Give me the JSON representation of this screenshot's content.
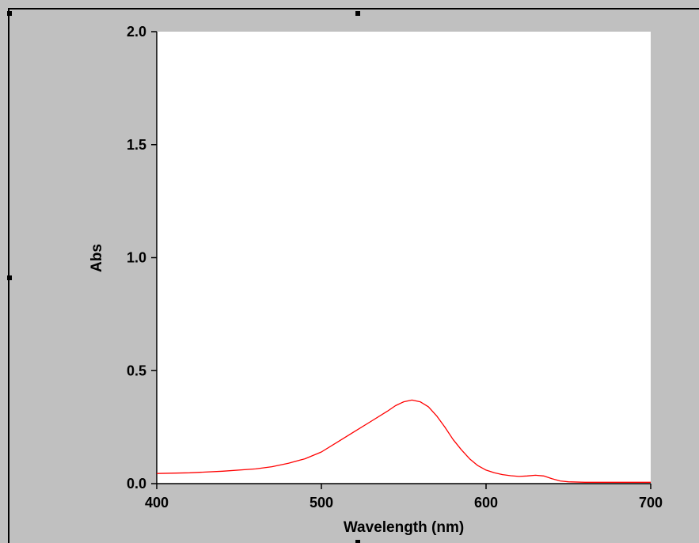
{
  "chart_data": {
    "type": "line",
    "title": "",
    "xlabel": "Wavelength (nm)",
    "ylabel": "Abs",
    "xlim": [
      400,
      700
    ],
    "ylim": [
      0.0,
      2.0
    ],
    "x_ticks": [
      400,
      500,
      600,
      700
    ],
    "x_tick_labels": [
      "400",
      "500",
      "600",
      "700"
    ],
    "y_ticks": [
      0.0,
      0.5,
      1.0,
      1.5,
      2.0
    ],
    "y_tick_labels": [
      "0.0",
      "0.5",
      "1.0",
      "1.5",
      "2.0"
    ],
    "grid": false,
    "plot_background": "#ffffff",
    "frame_background": "#c0c0c0",
    "series": [
      {
        "color": "#ff0000",
        "x": [
          400,
          420,
          440,
          460,
          470,
          480,
          490,
          500,
          510,
          520,
          530,
          540,
          545,
          550,
          555,
          560,
          565,
          570,
          575,
          580,
          585,
          590,
          595,
          600,
          605,
          610,
          615,
          620,
          625,
          630,
          635,
          640,
          645,
          650,
          660,
          680,
          700
        ],
        "y": [
          0.045,
          0.048,
          0.055,
          0.065,
          0.075,
          0.09,
          0.11,
          0.14,
          0.185,
          0.23,
          0.275,
          0.32,
          0.345,
          0.362,
          0.37,
          0.362,
          0.34,
          0.3,
          0.25,
          0.195,
          0.15,
          0.11,
          0.08,
          0.06,
          0.048,
          0.04,
          0.035,
          0.032,
          0.034,
          0.037,
          0.034,
          0.022,
          0.012,
          0.008,
          0.006,
          0.006,
          0.006
        ]
      }
    ]
  }
}
